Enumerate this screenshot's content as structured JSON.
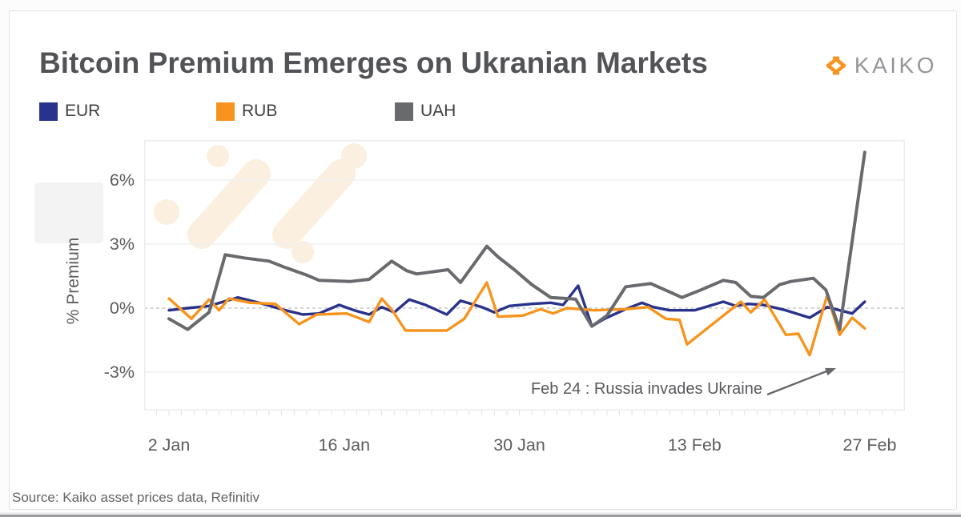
{
  "header": {
    "title": "Bitcoin Premium Emerges on Ukranian Markets",
    "logo_text": "KAIKO"
  },
  "legend": [
    {
      "label": "EUR",
      "color": "#2a338c"
    },
    {
      "label": "RUB",
      "color": "#f7941e"
    },
    {
      "label": "UAH",
      "color": "#696a6d"
    }
  ],
  "footer": {
    "source": "Source: Kaiko asset prices data, Refinitiv"
  },
  "chart_data": {
    "type": "line",
    "title": "Bitcoin Premium Emerges on Ukranian Markets",
    "xlabel": "",
    "ylabel": "% Premium",
    "x_axis_note": "days are offsets from 2 Jan 2022",
    "x_ticks": [
      {
        "label": "2 Jan",
        "day": 0
      },
      {
        "label": "16 Jan",
        "day": 14
      },
      {
        "label": "30 Jan",
        "day": 28
      },
      {
        "label": "13 Feb",
        "day": 42
      },
      {
        "label": "27 Feb",
        "day": 56
      }
    ],
    "y_ticks": [
      {
        "label": "6%",
        "value": 6
      },
      {
        "label": "3%",
        "value": 3
      },
      {
        "label": "0%",
        "value": 0
      },
      {
        "label": "-3%",
        "value": -3
      }
    ],
    "y_range": [
      -4.8,
      7.88
    ],
    "x_range_days": [
      -2,
      58.8
    ],
    "grid": "horizontal",
    "zero_line_style": "dashed",
    "legend_position": "top",
    "annotation": {
      "text": "Feb 24 : Russia invades Ukraine",
      "arrow_points_to": "UAH dip just before the final spike"
    },
    "series": [
      {
        "name": "EUR",
        "color": "#2a338c",
        "points": [
          [
            0,
            -0.1
          ],
          [
            1.5,
            0.0
          ],
          [
            3.2,
            0.1
          ],
          [
            5.5,
            0.5
          ],
          [
            7.2,
            0.25
          ],
          [
            9.3,
            -0.1
          ],
          [
            10.7,
            -0.3
          ],
          [
            12,
            -0.25
          ],
          [
            13.6,
            0.15
          ],
          [
            14.8,
            -0.1
          ],
          [
            16,
            -0.3
          ],
          [
            17,
            0.05
          ],
          [
            18,
            -0.2
          ],
          [
            19.2,
            0.4
          ],
          [
            20.5,
            0.15
          ],
          [
            22.2,
            -0.3
          ],
          [
            23.3,
            0.35
          ],
          [
            25,
            0.05
          ],
          [
            26,
            -0.2
          ],
          [
            27.2,
            0.1
          ],
          [
            29,
            0.2
          ],
          [
            30.5,
            0.25
          ],
          [
            31.5,
            0.15
          ],
          [
            32.7,
            1.05
          ],
          [
            33.8,
            -0.85
          ],
          [
            34.8,
            -0.5
          ],
          [
            36.5,
            -0.05
          ],
          [
            37.8,
            0.25
          ],
          [
            38.7,
            0.05
          ],
          [
            40,
            -0.1
          ],
          [
            42,
            -0.1
          ],
          [
            44.3,
            0.3
          ],
          [
            45.3,
            0.1
          ],
          [
            46.3,
            0.2
          ],
          [
            47.5,
            0.15
          ],
          [
            49.3,
            -0.1
          ],
          [
            51.2,
            -0.45
          ],
          [
            52.6,
            0.05
          ],
          [
            53.6,
            -0.1
          ],
          [
            54.6,
            -0.25
          ],
          [
            55.6,
            0.3
          ]
        ]
      },
      {
        "name": "RUB",
        "color": "#f7941e",
        "points": [
          [
            0,
            0.45
          ],
          [
            1.8,
            -0.5
          ],
          [
            3.2,
            0.4
          ],
          [
            4,
            -0.1
          ],
          [
            4.8,
            0.45
          ],
          [
            6.5,
            0.25
          ],
          [
            8.5,
            0.2
          ],
          [
            10.4,
            -0.75
          ],
          [
            11.8,
            -0.3
          ],
          [
            14.2,
            -0.25
          ],
          [
            16,
            -0.65
          ],
          [
            17,
            0.45
          ],
          [
            17.9,
            -0.15
          ],
          [
            18.9,
            -1.05
          ],
          [
            22.2,
            -1.05
          ],
          [
            23.6,
            -0.5
          ],
          [
            25.4,
            1.2
          ],
          [
            26.3,
            -0.4
          ],
          [
            28.3,
            -0.35
          ],
          [
            29.7,
            -0.05
          ],
          [
            30.7,
            -0.25
          ],
          [
            31.8,
            0.0
          ],
          [
            34,
            -0.1
          ],
          [
            36.5,
            -0.05
          ],
          [
            38.3,
            0.05
          ],
          [
            39.7,
            -0.5
          ],
          [
            40.8,
            -0.55
          ],
          [
            41.4,
            -1.7
          ],
          [
            45.7,
            0.3
          ],
          [
            46.5,
            -0.2
          ],
          [
            47.6,
            0.4
          ],
          [
            49.3,
            -1.25
          ],
          [
            50.3,
            -1.2
          ],
          [
            51.2,
            -2.2
          ],
          [
            52.6,
            0.6
          ],
          [
            53.6,
            -1.25
          ],
          [
            54.6,
            -0.45
          ],
          [
            55.6,
            -0.95
          ]
        ]
      },
      {
        "name": "UAH",
        "color": "#696a6d",
        "points": [
          [
            0,
            -0.5
          ],
          [
            1.5,
            -1.0
          ],
          [
            3.2,
            -0.2
          ],
          [
            4.5,
            2.5
          ],
          [
            6,
            2.35
          ],
          [
            8,
            2.2
          ],
          [
            9.3,
            1.9
          ],
          [
            11,
            1.55
          ],
          [
            12,
            1.3
          ],
          [
            14.5,
            1.25
          ],
          [
            16,
            1.35
          ],
          [
            17.8,
            2.2
          ],
          [
            19,
            1.75
          ],
          [
            19.8,
            1.6
          ],
          [
            22.3,
            1.8
          ],
          [
            23.3,
            1.2
          ],
          [
            25.4,
            2.9
          ],
          [
            26.3,
            2.4
          ],
          [
            27.6,
            1.8
          ],
          [
            29,
            1.1
          ],
          [
            30.5,
            0.5
          ],
          [
            32.5,
            0.42
          ],
          [
            33.8,
            -0.85
          ],
          [
            35,
            -0.35
          ],
          [
            36.5,
            1.0
          ],
          [
            38.5,
            1.15
          ],
          [
            41,
            0.5
          ],
          [
            42.5,
            0.85
          ],
          [
            44.3,
            1.3
          ],
          [
            45.3,
            1.2
          ],
          [
            46.5,
            0.55
          ],
          [
            47.5,
            0.5
          ],
          [
            48.8,
            1.1
          ],
          [
            49.7,
            1.25
          ],
          [
            51.5,
            1.4
          ],
          [
            52.5,
            0.85
          ],
          [
            53.6,
            -1.0
          ],
          [
            55.6,
            7.3
          ]
        ]
      }
    ]
  }
}
